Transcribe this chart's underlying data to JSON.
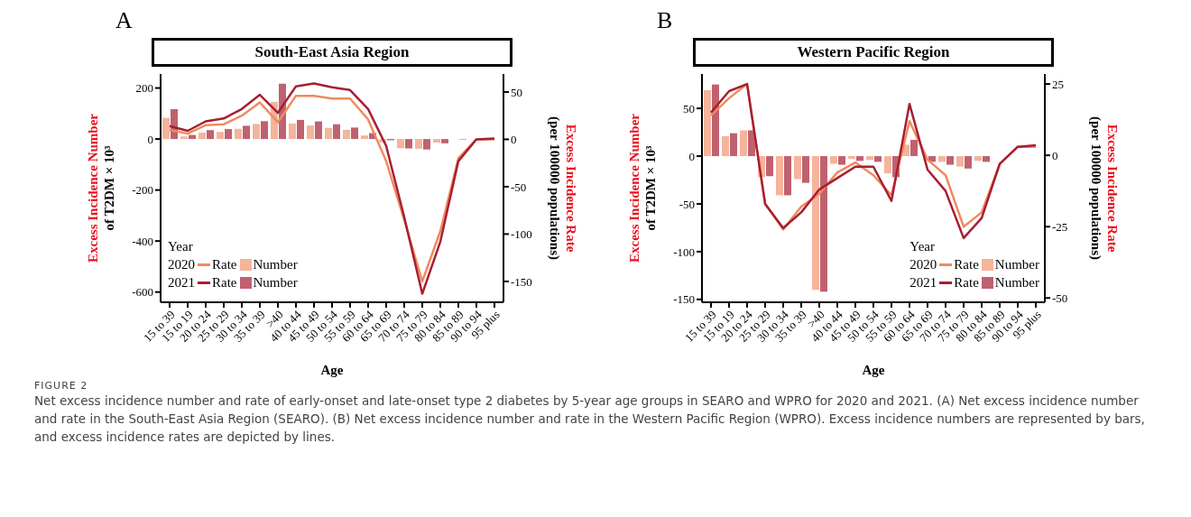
{
  "chart_data": [
    {
      "type": "bar",
      "title": "South-East Asia Region",
      "xlabel": "Age",
      "ylabel": "Excess Incidence Number\nof T2DM × 10³",
      "y2label": "Excess Incidence Rate\n(per 100000 populations)",
      "legend_title": "Year",
      "legend": "bottom left",
      "annotations": [
        "A",
        "2020",
        "2021",
        "FIGURE 2",
        "Net excess incidence number and rate of early-onset and late-onset type 2 diabetes by 5-year age groups in SEARO and WPRO for 2020 and 2021. (A) Net excess incidence number and rate in the South-East Asia Region (SEARO). (B) Net excess incidence number and rate in the Western Pacific Region (WPRO). Excess incidence numbers are represented by bars, and excess incidence rates are depicted by lines."
      ],
      "categories": [
        "15 to 39",
        "15 to 19",
        "20 to 24",
        "25 to 29",
        "30 to 34",
        "35 to 39",
        ">40",
        "40 to 44",
        "45 to 49",
        "50 to 54",
        "55 to 59",
        "60 to 64",
        "65 to 69",
        "70 to 74",
        "75 to 79",
        "80 to 84",
        "85 to 89",
        "90 to 94",
        "95 plus"
      ],
      "ylim": [
        -640,
        255
      ],
      "yticks": [
        -600,
        -400,
        -200,
        0,
        200
      ],
      "y2lim": [
        -172,
        69
      ],
      "y2ticks": [
        -150,
        -100,
        -50,
        0,
        50
      ],
      "series": [
        {
          "name": "Number",
          "color": "#f5b49b",
          "values": [
            83,
            10,
            25,
            28,
            40,
            59,
            146,
            61,
            53,
            44,
            36,
            14,
            -13,
            -36,
            -38,
            -14,
            null,
            0,
            0
          ]
        },
        {
          "name": "Number",
          "color": "#c0616f",
          "values": [
            117,
            16,
            35,
            39,
            52,
            70,
            217,
            75,
            69,
            58,
            45,
            23,
            -5,
            -37,
            -41,
            -17,
            -2,
            0,
            0
          ]
        },
        {
          "name": "Rate",
          "type": "line",
          "axis": "y2",
          "color": "#f08a5e",
          "values": [
            10,
            6,
            15,
            16,
            25,
            39,
            18,
            46,
            46,
            43,
            43,
            21,
            -23,
            -85,
            -150,
            -97,
            -20,
            0,
            0
          ]
        },
        {
          "name": "Rate",
          "type": "line",
          "axis": "y2",
          "color": "#a81e32",
          "values": [
            14,
            9,
            19,
            22,
            32,
            47,
            28,
            56,
            59,
            55,
            52,
            32,
            -7,
            -82,
            -163,
            -108,
            -23,
            0,
            1
          ]
        }
      ]
    },
    {
      "type": "bar",
      "title": "Western Pacific Region",
      "xlabel": "Age",
      "ylabel": "Excess Incidence Number\nof T2DM × 10³",
      "y2label": "Excess Incidence Rate\n(per 100000 populations)",
      "legend_title": "Year",
      "legend": "bottom right",
      "annotations": [
        "B",
        "2020",
        "2021"
      ],
      "categories": [
        "15 to 39",
        "15 to 19",
        "20 to 24",
        "25 to 29",
        "30 to 34",
        "35 to 39",
        ">40",
        "40 to 44",
        "45 to 49",
        "50 to 54",
        "55 to 59",
        "60 to 64",
        "65 to 69",
        "70 to 74",
        "75 to 79",
        "80 to 84",
        "85 to 89",
        "90 to 94",
        "95 plus"
      ],
      "ylim": [
        -153,
        86
      ],
      "yticks": [
        -150,
        -100,
        -50,
        0,
        50
      ],
      "y2lim": [
        -51.5,
        28.5
      ],
      "y2ticks": [
        -50,
        -25,
        0,
        25
      ],
      "series": [
        {
          "name": "Number",
          "color": "#f5b49b",
          "values": [
            69,
            21,
            27,
            -22,
            -41,
            -24,
            -140,
            -8,
            -3,
            -4,
            -18,
            12,
            null,
            -6,
            -11,
            -5,
            0,
            0,
            0
          ]
        },
        {
          "name": "Number",
          "color": "#c0616f",
          "values": [
            75,
            24,
            27,
            -21,
            -41,
            -28,
            -142,
            -9,
            -5,
            -6,
            -22,
            17,
            -6,
            -9,
            -13,
            -6,
            0,
            0,
            0
          ]
        },
        {
          "name": "Rate",
          "type": "line",
          "axis": "y2",
          "color": "#f08a5e",
          "values": [
            14,
            20,
            25,
            -17,
            -26,
            -18,
            -13.5,
            -6,
            -2.5,
            -7,
            -14,
            12,
            -1.5,
            -7,
            -25,
            -20,
            -3,
            3,
            3
          ]
        },
        {
          "name": "Rate",
          "type": "line",
          "axis": "y2",
          "color": "#a81e32",
          "values": [
            15,
            22.5,
            25,
            -17,
            -25.5,
            -20,
            -12,
            -8,
            -4,
            -4,
            -16,
            18,
            -5,
            -12.5,
            -29,
            -22,
            -3,
            3,
            3.5
          ]
        }
      ]
    }
  ]
}
